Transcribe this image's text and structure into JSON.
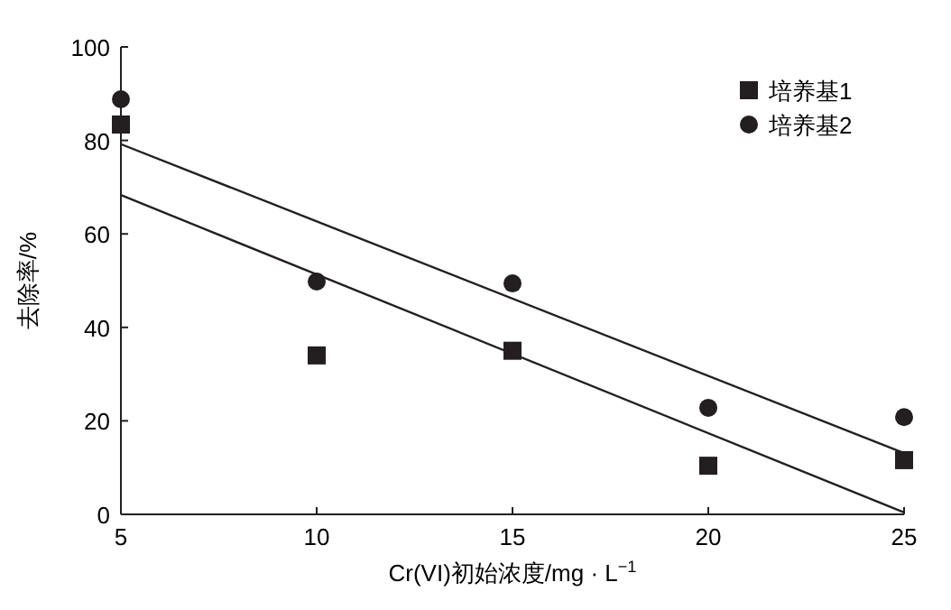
{
  "chart_data": {
    "type": "scatter",
    "xlabel": "Cr(VI)初始浓度/mg · L$^{−1}$",
    "ylabel": "去除率/%",
    "xlim": [
      5,
      25
    ],
    "ylim": [
      0,
      100
    ],
    "xticks": [
      5,
      10,
      15,
      20,
      25
    ],
    "yticks": [
      0,
      20,
      40,
      60,
      80,
      100
    ],
    "legend": "top right",
    "grid": false,
    "series": [
      {
        "name": "培养基1",
        "color": "#231f20",
        "marker": "square",
        "x": [
          5,
          10,
          15,
          20,
          25
        ],
        "values": [
          83.4,
          34,
          35,
          10.4,
          11.6
        ]
      },
      {
        "name": "培养基2",
        "color": "#231f20",
        "marker": "circle",
        "x": [
          5,
          10,
          15,
          20,
          25
        ],
        "values": [
          88.8,
          49.8,
          49.4,
          22.8,
          20.8
        ]
      },
      {
        "type": "line",
        "color": "#231f20",
        "marker": "none",
        "x": [
          5,
          25
        ],
        "values": [
          68.3,
          0.4
        ]
      },
      {
        "type": "line",
        "color": "#231f20",
        "marker": "none",
        "x": [
          5,
          25
        ],
        "values": [
          79.2,
          13.1
        ]
      }
    ]
  }
}
